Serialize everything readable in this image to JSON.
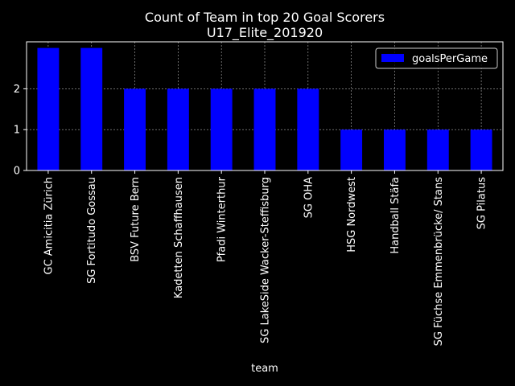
{
  "chart_data": {
    "type": "bar",
    "title": "Count of Team in top 20 Goal Scorers",
    "subtitle": "U17_Elite_201920",
    "xlabel": "team",
    "ylabel": "",
    "categories": [
      "GC Amicitia Zürich",
      "SG Fortitudo Gossau",
      "BSV Future Bern",
      "Kadetten Schaffhausen",
      "Pfadi Winterthur",
      "SG LakeSide Wacker-Steffisburg",
      "SG OHA",
      "HSG Nordwest",
      "Handball Stäfa",
      "SG Füchse Emmenbrücke/ Stans",
      "SG Pilatus"
    ],
    "series": [
      {
        "name": "goalsPerGame",
        "values": [
          3,
          3,
          2,
          2,
          2,
          2,
          2,
          1,
          1,
          1,
          1
        ]
      }
    ],
    "ylim": [
      0,
      3.15
    ],
    "yticks": [
      0,
      1,
      2
    ],
    "grid": true,
    "legend_position": "top-right",
    "colors": {
      "background": "#000000",
      "bar": "#0000ff",
      "text": "#ffffff",
      "grid": "#b0b0b0",
      "legend_border": "#cccccc"
    }
  }
}
